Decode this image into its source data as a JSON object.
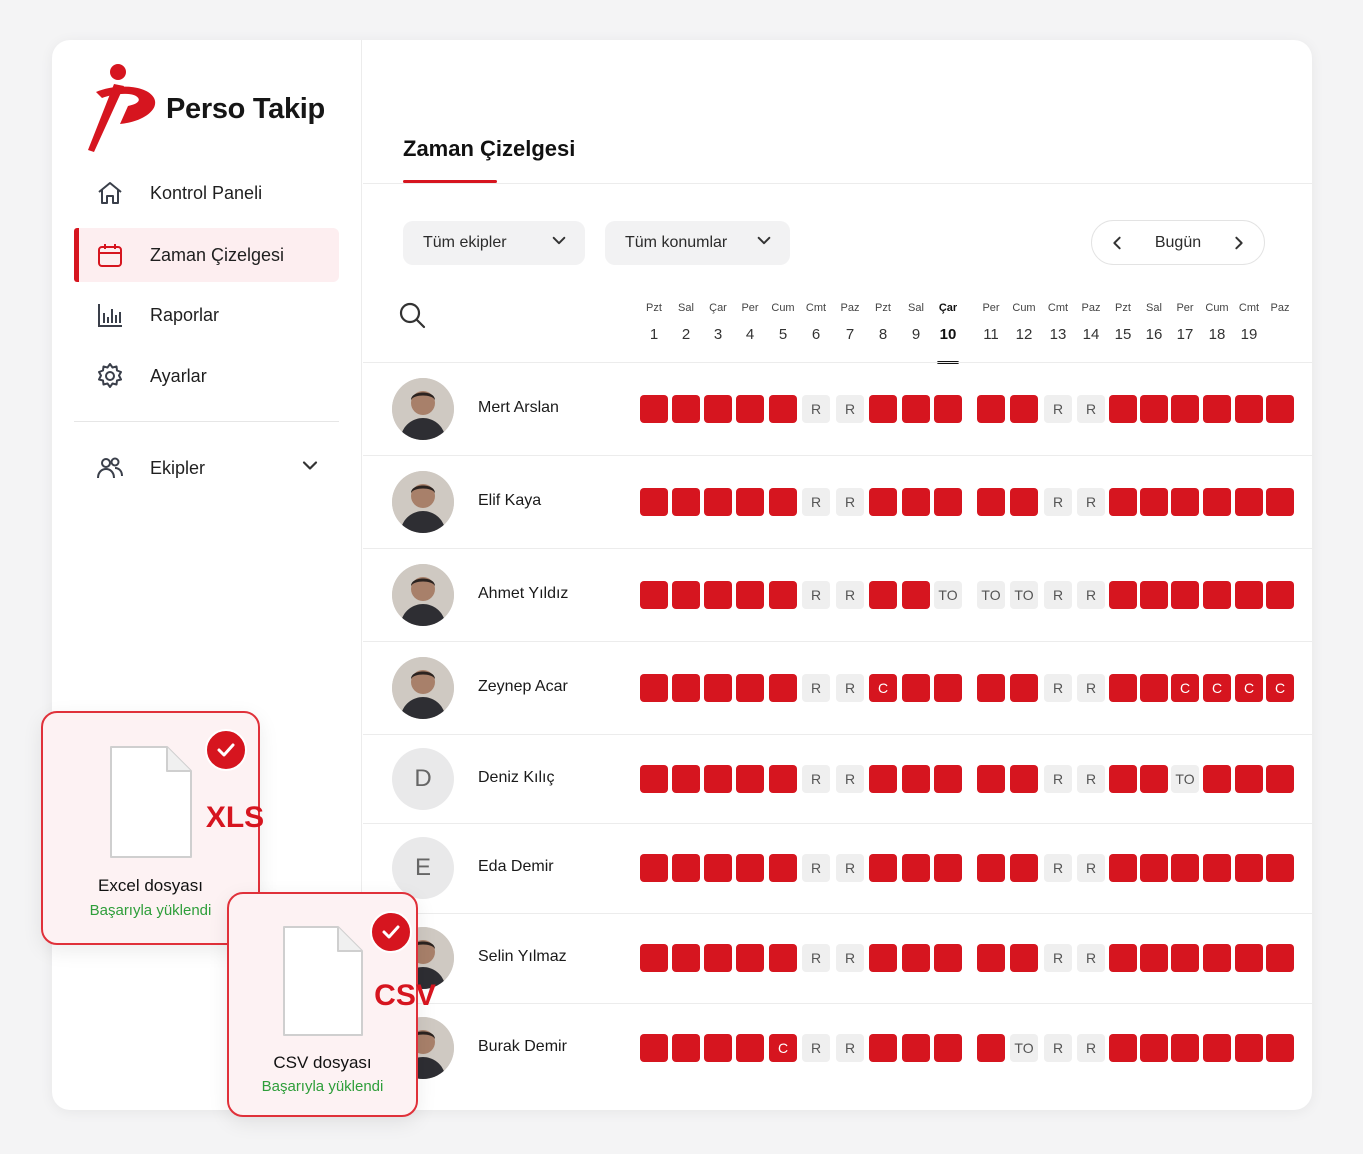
{
  "brand": {
    "name": "Perso Takip",
    "accent": "#d6151f"
  },
  "sidebar": {
    "items": [
      {
        "label": "Kontrol Paneli",
        "icon": "home-icon"
      },
      {
        "label": "Zaman Çizelgesi",
        "icon": "calendar-icon",
        "active": true
      },
      {
        "label": "Raporlar",
        "icon": "bar-chart-icon"
      },
      {
        "label": "Ayarlar",
        "icon": "gear-icon"
      }
    ],
    "teams": {
      "label": "Ekipler",
      "icon": "users-icon"
    }
  },
  "main": {
    "title": "Zaman Çizelgesi",
    "filters": {
      "teams": "Tüm ekipler",
      "locations": "Tüm konumlar"
    },
    "date_nav": {
      "label": "Bugün"
    },
    "days": [
      {
        "name": "Pzt",
        "num": "1"
      },
      {
        "name": "Sal",
        "num": "2"
      },
      {
        "name": "Çar",
        "num": "3"
      },
      {
        "name": "Per",
        "num": "4"
      },
      {
        "name": "Cum",
        "num": "5"
      },
      {
        "name": "Cmt",
        "num": "6"
      },
      {
        "name": "Paz",
        "num": "7"
      },
      {
        "name": "Pzt",
        "num": "8"
      },
      {
        "name": "Sal",
        "num": "9"
      },
      {
        "name": "Çar",
        "num": "10",
        "today": true
      },
      {
        "name": "Per",
        "num": "11"
      },
      {
        "name": "Cum",
        "num": "12"
      },
      {
        "name": "Cmt",
        "num": "13"
      },
      {
        "name": "Paz",
        "num": "14"
      },
      {
        "name": "Pzt",
        "num": "15"
      },
      {
        "name": "Sal",
        "num": "16"
      },
      {
        "name": "Per",
        "num": "17"
      },
      {
        "name": "Cum",
        "num": "18"
      },
      {
        "name": "Cmt",
        "num": "19"
      },
      {
        "name": "Paz",
        "num": ""
      }
    ],
    "employees": [
      {
        "name": "Mert Arslan",
        "avatar": "photo",
        "cells": [
          "",
          "",
          "",
          "",
          "",
          "R",
          "R",
          "",
          "",
          "",
          "",
          "",
          "R",
          "R",
          "",
          "",
          "",
          "",
          "",
          ""
        ]
      },
      {
        "name": "Elif Kaya",
        "avatar": "photo",
        "cells": [
          "",
          "",
          "",
          "",
          "",
          "R",
          "R",
          "",
          "",
          "",
          "",
          "",
          "R",
          "R",
          "",
          "",
          "",
          "",
          "",
          ""
        ]
      },
      {
        "name": "Ahmet Yıldız",
        "avatar": "photo",
        "cells": [
          "",
          "",
          "",
          "",
          "",
          "R",
          "R",
          "",
          "",
          "TO",
          "TO",
          "TO",
          "R",
          "R",
          "",
          "",
          "",
          "",
          "",
          ""
        ]
      },
      {
        "name": "Zeynep Acar",
        "avatar": "photo",
        "cells": [
          "",
          "",
          "",
          "",
          "",
          "R",
          "R",
          "C",
          "",
          "",
          "",
          "",
          "R",
          "R",
          "",
          "",
          "C",
          "C",
          "C",
          "C"
        ]
      },
      {
        "name": "Deniz Kılıç",
        "avatar": "initial",
        "initial": "D",
        "cells": [
          "",
          "",
          "",
          "",
          "",
          "R",
          "R",
          "",
          "",
          "",
          "",
          "",
          "R",
          "R",
          "",
          "",
          "TO",
          "",
          "",
          ""
        ]
      },
      {
        "name": "Eda Demir",
        "avatar": "initial",
        "initial": "E",
        "cells": [
          "",
          "",
          "",
          "",
          "",
          "R",
          "R",
          "",
          "",
          "",
          "",
          "",
          "R",
          "R",
          "",
          "",
          "",
          "",
          "",
          ""
        ]
      },
      {
        "name": "Selin Yılmaz",
        "avatar": "photo",
        "cells": [
          "",
          "",
          "",
          "",
          "",
          "R",
          "R",
          "",
          "",
          "",
          "",
          "",
          "R",
          "R",
          "",
          "",
          "",
          "",
          "",
          ""
        ]
      },
      {
        "name": "Burak Demir",
        "avatar": "photo",
        "cells": [
          "",
          "",
          "",
          "",
          "C",
          "R",
          "R",
          "",
          "",
          "",
          "",
          "TO",
          "R",
          "R",
          "",
          "",
          "",
          "",
          "",
          ""
        ]
      }
    ]
  },
  "uploads": [
    {
      "ext": "XLS",
      "title": "Excel dosyası",
      "status": "Başarıyla yüklendi"
    },
    {
      "ext": "CSV",
      "title": "CSV dosyası",
      "status": "Başarıyla yüklendi"
    }
  ]
}
